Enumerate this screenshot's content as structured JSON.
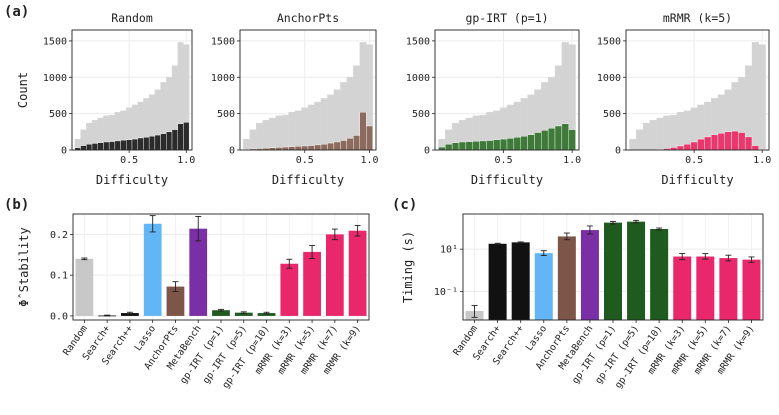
{
  "panel_labels": {
    "a": "(a)",
    "b": "(b)",
    "c": "(c)"
  },
  "chart_data": [
    {
      "type": "bar",
      "id": "hist-random",
      "title": "Random",
      "xlabel": "Difficulty",
      "ylabel": "Count",
      "xlim": [
        0,
        1.05
      ],
      "ylim": [
        0,
        1650
      ],
      "xticks": [
        0.5,
        1.0
      ],
      "yticks": [
        0,
        500,
        1000,
        1500
      ],
      "bin_centers": [
        0.05,
        0.1,
        0.15,
        0.2,
        0.25,
        0.3,
        0.35,
        0.4,
        0.45,
        0.5,
        0.55,
        0.6,
        0.65,
        0.7,
        0.75,
        0.8,
        0.85,
        0.9,
        0.95,
        1.0
      ],
      "series": [
        {
          "values": [
            150,
            280,
            370,
            410,
            440,
            470,
            480,
            520,
            540,
            580,
            620,
            660,
            710,
            760,
            830,
            930,
            1000,
            1160,
            1480,
            1450
          ],
          "color": "#d3d3d3"
        },
        {
          "values": [
            30,
            60,
            80,
            90,
            100,
            110,
            115,
            125,
            135,
            140,
            150,
            165,
            175,
            190,
            205,
            225,
            250,
            280,
            360,
            380
          ],
          "color": "#2b2b2b"
        }
      ]
    },
    {
      "type": "bar",
      "id": "hist-anchorpts",
      "title": "AnchorPts",
      "xlabel": "Difficulty",
      "xlim": [
        0,
        1.05
      ],
      "ylim": [
        0,
        1650
      ],
      "xticks": [
        0.5,
        1.0
      ],
      "yticks": [
        0,
        500,
        1000,
        1500
      ],
      "bin_centers": [
        0.05,
        0.1,
        0.15,
        0.2,
        0.25,
        0.3,
        0.35,
        0.4,
        0.45,
        0.5,
        0.55,
        0.6,
        0.65,
        0.7,
        0.75,
        0.8,
        0.85,
        0.9,
        0.95,
        1.0
      ],
      "series": [
        {
          "values": [
            150,
            280,
            370,
            410,
            440,
            470,
            480,
            520,
            540,
            580,
            620,
            660,
            710,
            760,
            830,
            930,
            1000,
            1160,
            1480,
            1450
          ],
          "color": "#d3d3d3"
        },
        {
          "values": [
            10,
            15,
            20,
            25,
            30,
            35,
            40,
            45,
            50,
            55,
            60,
            70,
            80,
            95,
            110,
            130,
            160,
            200,
            520,
            330
          ],
          "color": "#8c6a5d"
        }
      ]
    },
    {
      "type": "bar",
      "id": "hist-gpirt",
      "title": "gp-IRT (p=1)",
      "xlabel": "Difficulty",
      "xlim": [
        0,
        1.05
      ],
      "ylim": [
        0,
        1650
      ],
      "xticks": [
        0.5,
        1.0
      ],
      "yticks": [
        0,
        500,
        1000,
        1500
      ],
      "bin_centers": [
        0.05,
        0.1,
        0.15,
        0.2,
        0.25,
        0.3,
        0.35,
        0.4,
        0.45,
        0.5,
        0.55,
        0.6,
        0.65,
        0.7,
        0.75,
        0.8,
        0.85,
        0.9,
        0.95,
        1.0
      ],
      "series": [
        {
          "values": [
            150,
            280,
            370,
            410,
            440,
            470,
            480,
            520,
            540,
            580,
            620,
            660,
            710,
            760,
            830,
            930,
            1000,
            1160,
            1480,
            1450
          ],
          "color": "#d3d3d3"
        },
        {
          "values": [
            40,
            80,
            100,
            110,
            115,
            120,
            125,
            130,
            140,
            150,
            160,
            175,
            190,
            210,
            240,
            270,
            300,
            330,
            360,
            280
          ],
          "color": "#3f7a3a"
        }
      ]
    },
    {
      "type": "bar",
      "id": "hist-mrmr",
      "title": "mRMR (k=5)",
      "xlabel": "Difficulty",
      "xlim": [
        0,
        1.05
      ],
      "ylim": [
        0,
        1650
      ],
      "xticks": [
        0.5,
        1.0
      ],
      "yticks": [
        0,
        500,
        1000,
        1500
      ],
      "bin_centers": [
        0.05,
        0.1,
        0.15,
        0.2,
        0.25,
        0.3,
        0.35,
        0.4,
        0.45,
        0.5,
        0.55,
        0.6,
        0.65,
        0.7,
        0.75,
        0.8,
        0.85,
        0.9,
        0.95,
        1.0
      ],
      "series": [
        {
          "values": [
            150,
            280,
            370,
            410,
            440,
            470,
            480,
            520,
            540,
            580,
            620,
            660,
            710,
            760,
            830,
            930,
            1000,
            1160,
            1480,
            1450
          ],
          "color": "#d3d3d3"
        },
        {
          "values": [
            0,
            0,
            0,
            0,
            10,
            20,
            35,
            55,
            80,
            110,
            150,
            180,
            210,
            230,
            250,
            260,
            240,
            180,
            60,
            10
          ],
          "color": "#e8386d"
        }
      ]
    },
    {
      "type": "bar",
      "id": "stability",
      "ylabel": "Φ̂ Stability",
      "ylim": [
        -0.01,
        0.25
      ],
      "yticks": [
        0.0,
        0.1,
        0.2
      ],
      "ytick_labels": [
        "0.0",
        "0.1",
        "0.2"
      ],
      "categories": [
        "Random",
        "Search+",
        "Search++",
        "Lasso",
        "AnchorPts",
        "MetaBench",
        "gp-IRT (p=1)",
        "gp-IRT (p=5)",
        "gp-IRT (p=10)",
        "mRMR (k=3)",
        "mRMR (k=5)",
        "mRMR (k=7)",
        "mRMR (k=9)"
      ],
      "values": [
        0.14,
        0.001,
        0.007,
        0.226,
        0.072,
        0.214,
        0.014,
        0.008,
        0.007,
        0.128,
        0.157,
        0.2,
        0.209
      ],
      "errors": [
        0.002,
        0.001,
        0.002,
        0.02,
        0.012,
        0.03,
        0.002,
        0.002,
        0.002,
        0.011,
        0.016,
        0.013,
        0.013
      ],
      "colors": [
        "#c8c8c8",
        "#111111",
        "#111111",
        "#63b6f5",
        "#7d5549",
        "#7b2fa6",
        "#1f5a1f",
        "#1f5a1f",
        "#1f5a1f",
        "#e8286a",
        "#e8286a",
        "#e8286a",
        "#e8286a"
      ]
    },
    {
      "type": "bar",
      "id": "timing",
      "ylabel": "Timing (s)",
      "log_scale": true,
      "ylim": [
        0.0045,
        460
      ],
      "ytick_values": [
        0.1,
        10
      ],
      "ytick_labels": [
        "10⁻¹",
        "10¹"
      ],
      "categories": [
        "Random",
        "Search+",
        "Search++",
        "Lasso",
        "AnchorPts",
        "MetaBench",
        "gp-IRT (p=1)",
        "gp-IRT (p=5)",
        "gp-IRT (p=10)",
        "mRMR (k=3)",
        "mRMR (k=5)",
        "mRMR (k=7)",
        "mRMR (k=9)"
      ],
      "values": [
        0.012,
        18,
        21,
        6.5,
        40,
        80,
        180,
        200,
        90,
        4.5,
        4.5,
        3.8,
        3.2
      ],
      "err_low": [
        0.006,
        17,
        20,
        5.0,
        28,
        52,
        155,
        175,
        80,
        3.2,
        3.4,
        2.8,
        2.4
      ],
      "err_high": [
        0.022,
        19,
        22,
        8.5,
        58,
        125,
        205,
        230,
        100,
        6.2,
        6.2,
        5.2,
        4.3
      ],
      "colors": [
        "#c8c8c8",
        "#111111",
        "#111111",
        "#63b6f5",
        "#7d5549",
        "#7b2fa6",
        "#1f5a1f",
        "#1f5a1f",
        "#1f5a1f",
        "#e8286a",
        "#e8286a",
        "#e8286a",
        "#e8286a"
      ]
    }
  ]
}
